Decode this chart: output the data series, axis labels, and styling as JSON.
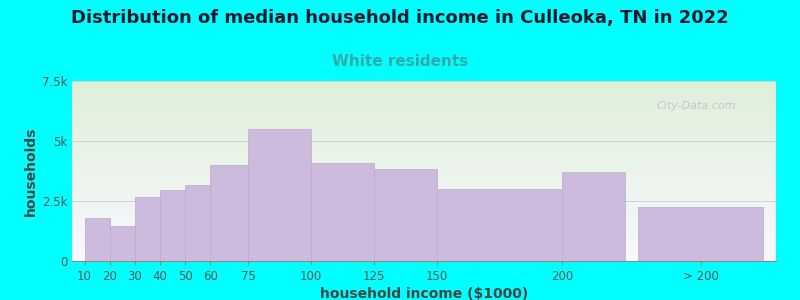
{
  "title": "Distribution of median household income in Culleoka, TN in 2022",
  "subtitle": "White residents",
  "xlabel": "household income ($1000)",
  "ylabel": "households",
  "background_color": "#00FFFF",
  "plot_bg_gradient_top": "#dff0d8",
  "plot_bg_gradient_bottom": "#f8f8ff",
  "bar_color": "#ccbbdd",
  "bar_edge_color": "#bbaacc",
  "categories": [
    "10",
    "20",
    "30",
    "40",
    "50",
    "60",
    "75",
    "100",
    "125",
    "150",
    "200",
    "> 200"
  ],
  "values": [
    1800,
    1450,
    2650,
    2950,
    3150,
    4000,
    5500,
    4100,
    3850,
    3000,
    3700,
    2250
  ],
  "ylim": [
    0,
    7500
  ],
  "yticks": [
    0,
    2500,
    5000,
    7500
  ],
  "ytick_labels": [
    "0",
    "2.5k",
    "5k",
    "7.5k"
  ],
  "title_fontsize": 13,
  "subtitle_fontsize": 11,
  "subtitle_color": "#33AAAA",
  "axis_label_fontsize": 10,
  "tick_fontsize": 8.5,
  "watermark_text": "City-Data.com",
  "bar_lefts": [
    10,
    20,
    30,
    40,
    50,
    60,
    75,
    100,
    125,
    150,
    200,
    230
  ],
  "bar_rights": [
    20,
    30,
    40,
    50,
    60,
    75,
    100,
    125,
    150,
    200,
    225,
    280
  ],
  "xtick_positions": [
    10,
    20,
    30,
    40,
    50,
    60,
    75,
    100,
    125,
    150,
    200,
    255
  ],
  "xlim": [
    5,
    285
  ]
}
